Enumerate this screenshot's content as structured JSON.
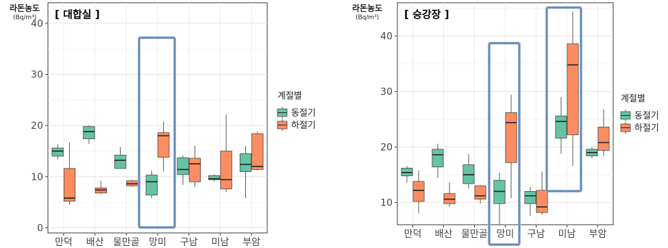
{
  "chart_data": [
    {
      "type": "boxplot",
      "title": "[ 대합실 ]",
      "ylabel": "라돈농도",
      "yunit": "(Bq/m³)",
      "ylim": [
        -1,
        44
      ],
      "yticks": [
        0,
        10,
        20,
        30,
        40
      ],
      "categories": [
        "만덕",
        "배산",
        "물만골",
        "망미",
        "구남",
        "미남",
        "부암"
      ],
      "legend_title": "계절별",
      "series": [
        {
          "name": "동절기",
          "color": "#66c2a5",
          "boxes": [
            {
              "min": 13.4,
              "q1": 14.0,
              "median": 15.0,
              "q3": 15.6,
              "max": 16.4
            },
            {
              "min": 16.4,
              "q1": 17.4,
              "median": 18.8,
              "q3": 19.8,
              "max": 20.0
            },
            {
              "min": 11.6,
              "q1": 11.6,
              "median": 13.2,
              "q3": 14.2,
              "max": 15.8
            },
            {
              "min": 5.8,
              "q1": 6.4,
              "median": 9.0,
              "q3": 10.3,
              "max": 11.2
            },
            {
              "min": 8.4,
              "q1": 10.4,
              "median": 11.4,
              "q3": 13.7,
              "max": 14.2
            },
            {
              "min": 9.0,
              "q1": 9.4,
              "median": 9.6,
              "q3": 10.2,
              "max": 10.4
            },
            {
              "min": 5.8,
              "q1": 11.0,
              "median": 12.4,
              "q3": 14.5,
              "max": 16.0
            }
          ]
        },
        {
          "name": "하절기",
          "color": "#fc8d62",
          "boxes": [
            {
              "min": 4.6,
              "q1": 5.2,
              "median": 5.8,
              "q3": 11.6,
              "max": 16.7
            },
            {
              "min": 6.6,
              "q1": 6.8,
              "median": 7.4,
              "q3": 7.8,
              "max": 9.2
            },
            {
              "min": 8.0,
              "q1": 8.2,
              "median": 8.6,
              "q3": 9.2,
              "max": 9.4
            },
            {
              "min": 11.0,
              "q1": 13.8,
              "median": 18.0,
              "q3": 18.6,
              "max": 20.8
            },
            {
              "min": 8.0,
              "q1": 9.0,
              "median": 12.5,
              "q3": 13.6,
              "max": 16.0
            },
            {
              "min": 7.0,
              "q1": 7.6,
              "median": 9.4,
              "q3": 15.0,
              "max": 22.2
            },
            {
              "min": 11.2,
              "q1": 11.4,
              "median": 12.0,
              "q3": 18.4,
              "max": 18.8
            }
          ]
        }
      ],
      "highlight_category": "망미"
    },
    {
      "type": "boxplot",
      "title": "[ 승강장 ]",
      "ylabel": "라돈농도",
      "yunit": "(Bq/m³)",
      "ylim": [
        6,
        46
      ],
      "yticks": [
        10,
        20,
        30,
        40
      ],
      "categories": [
        "만덕",
        "배산",
        "물만골",
        "망미",
        "구남",
        "미남",
        "부암"
      ],
      "legend_title": "계절별",
      "series": [
        {
          "name": "동절기",
          "color": "#66c2a5",
          "boxes": [
            {
              "min": 13.6,
              "q1": 14.8,
              "median": 15.4,
              "q3": 16.2,
              "max": 16.6
            },
            {
              "min": 14.5,
              "q1": 16.4,
              "median": 18.6,
              "q3": 19.6,
              "max": 20.6
            },
            {
              "min": 12.5,
              "q1": 13.4,
              "median": 15.0,
              "q3": 16.8,
              "max": 18.8
            },
            {
              "min": 6.0,
              "q1": 9.8,
              "median": 12.0,
              "q3": 14.0,
              "max": 15.4
            },
            {
              "min": 7.6,
              "q1": 9.8,
              "median": 11.2,
              "q3": 12.0,
              "max": 12.8
            },
            {
              "min": 18.8,
              "q1": 21.6,
              "median": 24.6,
              "q3": 25.6,
              "max": 29.0
            },
            {
              "min": 18.0,
              "q1": 18.4,
              "median": 19.0,
              "q3": 19.6,
              "max": 20.0
            }
          ]
        },
        {
          "name": "하절기",
          "color": "#fc8d62",
          "boxes": [
            {
              "min": 8.0,
              "q1": 10.2,
              "median": 12.2,
              "q3": 13.8,
              "max": 15.8
            },
            {
              "min": 9.2,
              "q1": 9.8,
              "median": 10.6,
              "q3": 11.6,
              "max": 13.6
            },
            {
              "min": 9.8,
              "q1": 10.6,
              "median": 11.2,
              "q3": 13.0,
              "max": 13.2
            },
            {
              "min": 10.8,
              "q1": 17.2,
              "median": 24.4,
              "q3": 26.2,
              "max": 29.4
            },
            {
              "min": 7.8,
              "q1": 8.2,
              "median": 9.2,
              "q3": 12.2,
              "max": 15.6
            },
            {
              "min": 16.6,
              "q1": 22.2,
              "median": 34.8,
              "q3": 38.6,
              "max": 44.4
            },
            {
              "min": 18.4,
              "q1": 19.4,
              "median": 20.8,
              "q3": 23.6,
              "max": 26.8
            }
          ]
        }
      ],
      "highlight_categories": [
        "망미",
        "미남"
      ]
    }
  ]
}
